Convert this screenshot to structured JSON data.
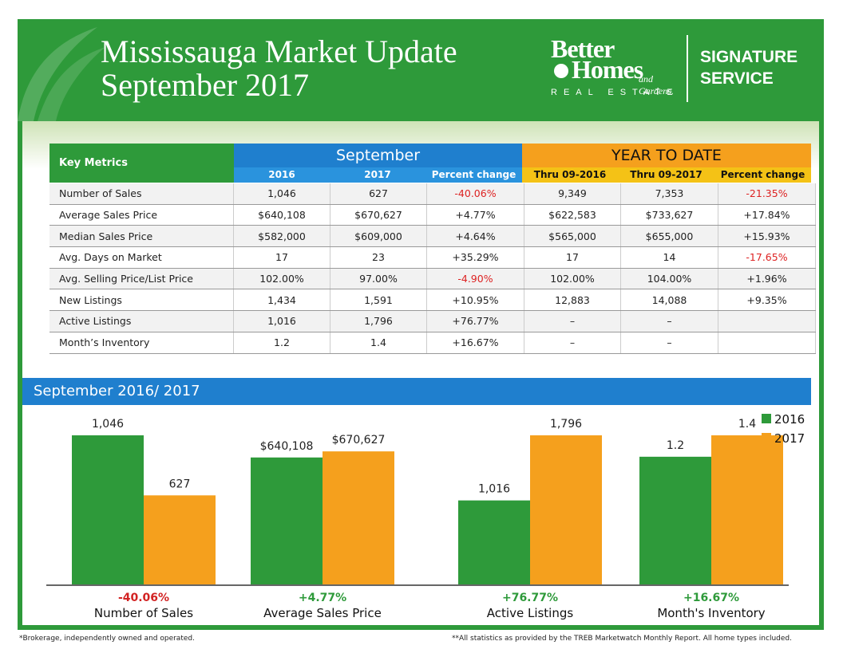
{
  "header": {
    "title_line1": "Mississauga Market Update",
    "title_line2": "September 2017",
    "logo_line1": "Better",
    "logo_line2": "Homes",
    "logo_sub": "and Gardens.",
    "logo_re": "REAL ESTATE",
    "sig_line1": "SIGNATURE",
    "sig_line2": "SERVICE"
  },
  "table": {
    "key_header": "Key Metrics",
    "sep_header": "September",
    "ytd_header": "YEAR TO DATE",
    "sub_headers": [
      "2016",
      "2017",
      "Percent change",
      "Thru 09-2016",
      "Thru 09-2017",
      "Percent change"
    ],
    "rows": [
      {
        "label": "Number of Sales",
        "cells": [
          "1,046",
          "627",
          "-40.06%",
          "9,349",
          "7,353",
          "-21.35%"
        ],
        "red": [
          2,
          5
        ]
      },
      {
        "label": "Average Sales Price",
        "cells": [
          "$640,108",
          "$670,627",
          "+4.77%",
          "$622,583",
          "$733,627",
          "+17.84%"
        ],
        "red": []
      },
      {
        "label": "Median Sales Price",
        "cells": [
          "$582,000",
          "$609,000",
          "+4.64%",
          "$565,000",
          "$655,000",
          "+15.93%"
        ],
        "red": []
      },
      {
        "label": "Avg. Days on Market",
        "cells": [
          "17",
          "23",
          "+35.29%",
          "17",
          "14",
          "-17.65%"
        ],
        "red": [
          5
        ]
      },
      {
        "label": "Avg. Selling Price/List Price",
        "cells": [
          "102.00%",
          "97.00%",
          "-4.90%",
          "102.00%",
          "104.00%",
          "+1.96%"
        ],
        "red": [
          2
        ]
      },
      {
        "label": "New Listings",
        "cells": [
          "1,434",
          "1,591",
          "+10.95%",
          "12,883",
          "14,088",
          "+9.35%"
        ],
        "red": []
      },
      {
        "label": "Active Listings",
        "cells": [
          "1,016",
          "1,796",
          "+76.77%",
          "–",
          "–",
          ""
        ],
        "red": []
      },
      {
        "label": "Month’s Inventory",
        "cells": [
          "1.2",
          "1.4",
          "+16.67%",
          "–",
          "–",
          ""
        ],
        "red": []
      }
    ]
  },
  "band_title": "September 2016/ 2017",
  "chart_data": {
    "type": "bar",
    "categories": [
      "Number of Sales",
      "Average Sales Price",
      "Active Listings",
      "Month's Inventory"
    ],
    "series": [
      {
        "name": "2016",
        "values": [
          1046,
          640108,
          1016,
          1.2
        ],
        "labels": [
          "1,046",
          "$640,108",
          "1,016",
          "1.2"
        ]
      },
      {
        "name": "2017",
        "values": [
          627,
          670627,
          1796,
          1.4
        ],
        "labels": [
          "627",
          "$670,627",
          "1,796",
          "1.4"
        ]
      }
    ],
    "changes": [
      "-40.06%",
      "+4.77%",
      "+76.77%",
      "+16.67%"
    ],
    "colors": {
      "2016": "#2e9a3a",
      "2017": "#f5a01d",
      "negative": "#d22222",
      "positive": "#2e9a3a"
    },
    "legend": "top-right"
  },
  "footer": {
    "left": "*Brokerage, independently owned and operated.",
    "right": "**All statistics as provided by the TREB Marketwatch Monthly Report. All home types included."
  }
}
